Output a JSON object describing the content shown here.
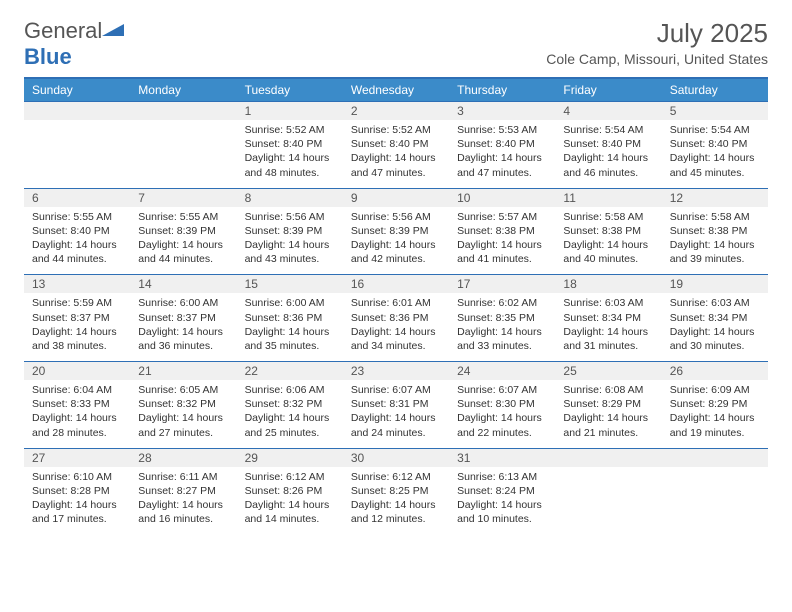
{
  "brand": {
    "part1": "General",
    "part2": "Blue"
  },
  "title": "July 2025",
  "location": "Cole Camp, Missouri, United States",
  "colors": {
    "header_bar": "#3b8bc9",
    "rule": "#2e6fb5",
    "daynum_bg": "#f0f0f0",
    "text": "#333333",
    "muted": "#555555",
    "white": "#ffffff"
  },
  "dow": [
    "Sunday",
    "Monday",
    "Tuesday",
    "Wednesday",
    "Thursday",
    "Friday",
    "Saturday"
  ],
  "weeks": [
    [
      null,
      null,
      {
        "n": "1",
        "sr": "5:52 AM",
        "ss": "8:40 PM",
        "dl": "14 hours and 48 minutes."
      },
      {
        "n": "2",
        "sr": "5:52 AM",
        "ss": "8:40 PM",
        "dl": "14 hours and 47 minutes."
      },
      {
        "n": "3",
        "sr": "5:53 AM",
        "ss": "8:40 PM",
        "dl": "14 hours and 47 minutes."
      },
      {
        "n": "4",
        "sr": "5:54 AM",
        "ss": "8:40 PM",
        "dl": "14 hours and 46 minutes."
      },
      {
        "n": "5",
        "sr": "5:54 AM",
        "ss": "8:40 PM",
        "dl": "14 hours and 45 minutes."
      }
    ],
    [
      {
        "n": "6",
        "sr": "5:55 AM",
        "ss": "8:40 PM",
        "dl": "14 hours and 44 minutes."
      },
      {
        "n": "7",
        "sr": "5:55 AM",
        "ss": "8:39 PM",
        "dl": "14 hours and 44 minutes."
      },
      {
        "n": "8",
        "sr": "5:56 AM",
        "ss": "8:39 PM",
        "dl": "14 hours and 43 minutes."
      },
      {
        "n": "9",
        "sr": "5:56 AM",
        "ss": "8:39 PM",
        "dl": "14 hours and 42 minutes."
      },
      {
        "n": "10",
        "sr": "5:57 AM",
        "ss": "8:38 PM",
        "dl": "14 hours and 41 minutes."
      },
      {
        "n": "11",
        "sr": "5:58 AM",
        "ss": "8:38 PM",
        "dl": "14 hours and 40 minutes."
      },
      {
        "n": "12",
        "sr": "5:58 AM",
        "ss": "8:38 PM",
        "dl": "14 hours and 39 minutes."
      }
    ],
    [
      {
        "n": "13",
        "sr": "5:59 AM",
        "ss": "8:37 PM",
        "dl": "14 hours and 38 minutes."
      },
      {
        "n": "14",
        "sr": "6:00 AM",
        "ss": "8:37 PM",
        "dl": "14 hours and 36 minutes."
      },
      {
        "n": "15",
        "sr": "6:00 AM",
        "ss": "8:36 PM",
        "dl": "14 hours and 35 minutes."
      },
      {
        "n": "16",
        "sr": "6:01 AM",
        "ss": "8:36 PM",
        "dl": "14 hours and 34 minutes."
      },
      {
        "n": "17",
        "sr": "6:02 AM",
        "ss": "8:35 PM",
        "dl": "14 hours and 33 minutes."
      },
      {
        "n": "18",
        "sr": "6:03 AM",
        "ss": "8:34 PM",
        "dl": "14 hours and 31 minutes."
      },
      {
        "n": "19",
        "sr": "6:03 AM",
        "ss": "8:34 PM",
        "dl": "14 hours and 30 minutes."
      }
    ],
    [
      {
        "n": "20",
        "sr": "6:04 AM",
        "ss": "8:33 PM",
        "dl": "14 hours and 28 minutes."
      },
      {
        "n": "21",
        "sr": "6:05 AM",
        "ss": "8:32 PM",
        "dl": "14 hours and 27 minutes."
      },
      {
        "n": "22",
        "sr": "6:06 AM",
        "ss": "8:32 PM",
        "dl": "14 hours and 25 minutes."
      },
      {
        "n": "23",
        "sr": "6:07 AM",
        "ss": "8:31 PM",
        "dl": "14 hours and 24 minutes."
      },
      {
        "n": "24",
        "sr": "6:07 AM",
        "ss": "8:30 PM",
        "dl": "14 hours and 22 minutes."
      },
      {
        "n": "25",
        "sr": "6:08 AM",
        "ss": "8:29 PM",
        "dl": "14 hours and 21 minutes."
      },
      {
        "n": "26",
        "sr": "6:09 AM",
        "ss": "8:29 PM",
        "dl": "14 hours and 19 minutes."
      }
    ],
    [
      {
        "n": "27",
        "sr": "6:10 AM",
        "ss": "8:28 PM",
        "dl": "14 hours and 17 minutes."
      },
      {
        "n": "28",
        "sr": "6:11 AM",
        "ss": "8:27 PM",
        "dl": "14 hours and 16 minutes."
      },
      {
        "n": "29",
        "sr": "6:12 AM",
        "ss": "8:26 PM",
        "dl": "14 hours and 14 minutes."
      },
      {
        "n": "30",
        "sr": "6:12 AM",
        "ss": "8:25 PM",
        "dl": "14 hours and 12 minutes."
      },
      {
        "n": "31",
        "sr": "6:13 AM",
        "ss": "8:24 PM",
        "dl": "14 hours and 10 minutes."
      },
      null,
      null
    ]
  ],
  "labels": {
    "sunrise": "Sunrise:",
    "sunset": "Sunset:",
    "daylight": "Daylight:"
  }
}
